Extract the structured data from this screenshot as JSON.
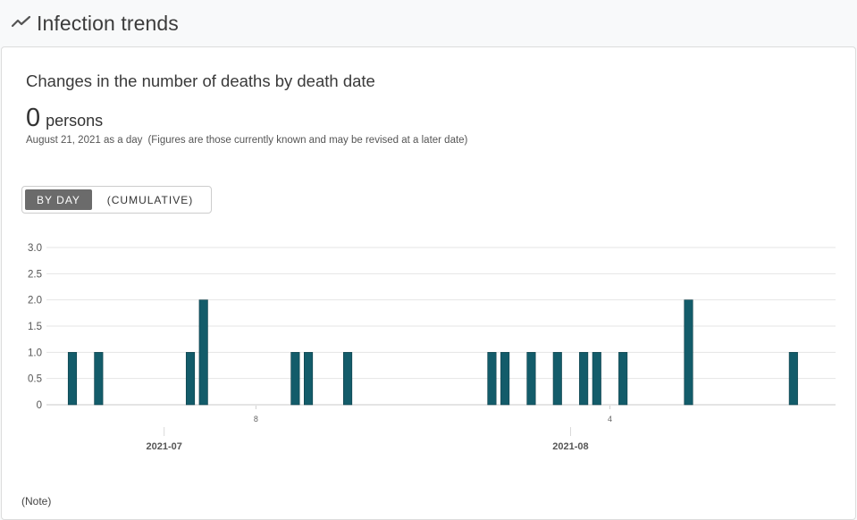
{
  "header": {
    "icon": "trend-line-icon",
    "title": "Infection trends"
  },
  "card": {
    "title": "Changes in the number of deaths by death date",
    "value": "0",
    "unit": "persons",
    "as_of": "August 21, 2021 as a day",
    "disclaimer": "(Figures are those currently known and may be revised at a later date)",
    "toggle": {
      "by_day": "BY DAY",
      "cumulative": "(CUMULATIVE)"
    },
    "footnote": "(Note)"
  },
  "colors": {
    "bar": "#135c6a",
    "toggle_active_bg": "#6b6b6b"
  },
  "chart_data": {
    "type": "bar",
    "y_ticks": [
      "3.0",
      "2.5",
      "2.0",
      "1.5",
      "1.0",
      "0.5",
      "0"
    ],
    "ylim": [
      0,
      3
    ],
    "date_range": [
      "2021-06-23",
      "2021-08-21"
    ],
    "day_ticks": [
      {
        "date": "2021-07-08",
        "label": "8"
      },
      {
        "date": "2021-08-04",
        "label": "4"
      }
    ],
    "month_ticks": [
      {
        "date": "2021-07-01",
        "label": "2021-07"
      },
      {
        "date": "2021-08-01",
        "label": "2021-08"
      }
    ],
    "points": [
      {
        "date": "2021-06-24",
        "value": 1
      },
      {
        "date": "2021-06-26",
        "value": 1
      },
      {
        "date": "2021-07-03",
        "value": 1
      },
      {
        "date": "2021-07-04",
        "value": 2
      },
      {
        "date": "2021-07-11",
        "value": 1
      },
      {
        "date": "2021-07-12",
        "value": 1
      },
      {
        "date": "2021-07-15",
        "value": 1
      },
      {
        "date": "2021-07-26",
        "value": 1
      },
      {
        "date": "2021-07-27",
        "value": 1
      },
      {
        "date": "2021-07-29",
        "value": 1
      },
      {
        "date": "2021-07-31",
        "value": 1
      },
      {
        "date": "2021-08-02",
        "value": 1
      },
      {
        "date": "2021-08-03",
        "value": 1
      },
      {
        "date": "2021-08-05",
        "value": 1
      },
      {
        "date": "2021-08-10",
        "value": 2
      },
      {
        "date": "2021-08-18",
        "value": 1
      }
    ]
  }
}
